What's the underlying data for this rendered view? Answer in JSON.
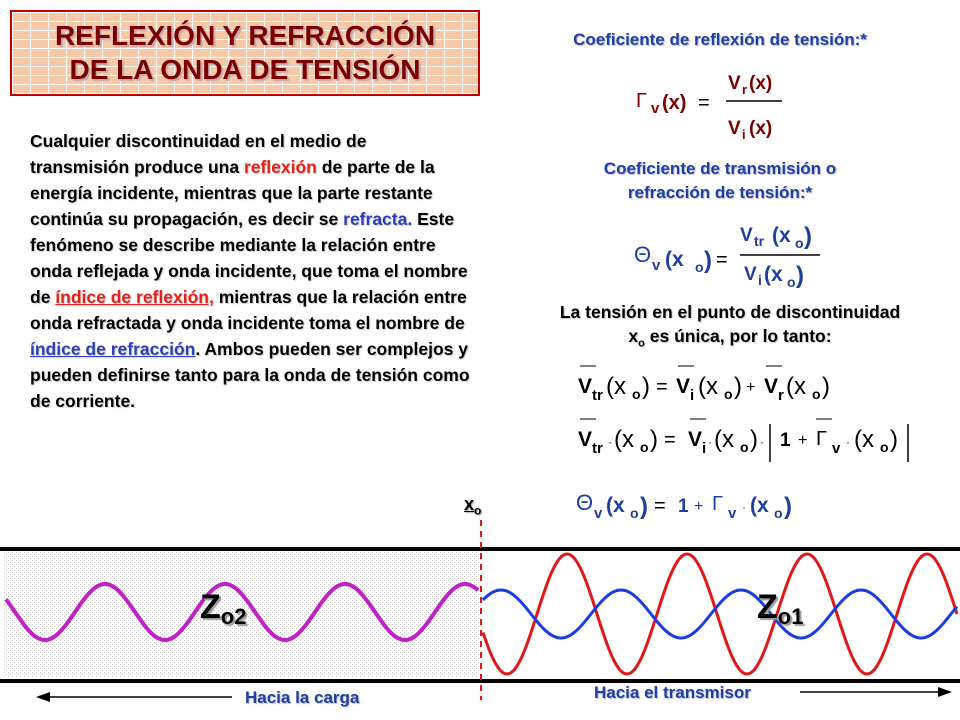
{
  "title": {
    "line1": "REFLEXIÓN Y REFRACCIÓN",
    "line2": "DE LA ONDA DE TENSIÓN"
  },
  "reflection_heading": "Coeficiente de reflexión de tensión:*",
  "transmission_heading": {
    "line1": "Coeficiente de transmisión o",
    "line2": "refracción de tensión:*"
  },
  "paragraph": {
    "p1": "Cualquier discontinuidad en el medio de transmisión produce una ",
    "w1": "reflexión",
    "p2": " de parte de la energía incidente, mientras que la parte restante continúa su propagación, es decir se ",
    "w2": "refracta.",
    "p3": " Este fenómeno se describe mediante la relación entre onda reflejada y onda incidente, que toma el nombre de ",
    "w3": "índice de reflexión,",
    "p4": " mientras que la relación entre onda refractada y onda incidente toma el nombre de ",
    "w4": "índice de refracción",
    "p5": ". Ambos pueden ser complejos y pueden definirse tanto para la onda de tensión como de corriente."
  },
  "discontinuity": {
    "line1": "La tensión en el punto de discontinuidad",
    "line2_pre": "x",
    "line2_sub": "o",
    "line2_post": " es única, por lo tanto:"
  },
  "equations": {
    "gamma_lhs": "Γ",
    "gamma_sub": "v",
    "gamma_arg": "(x)",
    "gamma_num": "V",
    "gamma_num_sub": "r",
    "gamma_num_arg": "(x)",
    "gamma_den": "V",
    "gamma_den_sub": "i",
    "gamma_den_arg": "(x)",
    "theta_lhs": "Θ",
    "theta_sub": "v",
    "theta_arg": "(x",
    "theta_arg_sub": "o",
    "theta_num": "V",
    "theta_num_sub": "tr",
    "theta_den": "V",
    "theta_den_sub": "i",
    "eq3_lhs": "V",
    "eq3_lhs_sub": "tr",
    "eq3_t1": "V",
    "eq3_t1_sub": "i",
    "eq3_t2": "V",
    "eq3_t2_sub": "r",
    "eq4_one": "1",
    "eq5_one": "1",
    "equals": "=",
    "plus": "+",
    "dot": "·"
  },
  "wave": {
    "xo_label": "x",
    "xo_sub": "o",
    "z_left": "Z",
    "z_left_sub": "o2",
    "z_right": "Z",
    "z_right_sub": "o1",
    "left_arrow_label": "Hacia la carga",
    "right_arrow_label": "Hacia el transmisor"
  },
  "colors": {
    "title_text": "#7a0000",
    "heading_blue": "#1f3fa0",
    "highlight_red": "#e8201a",
    "highlight_blue": "#2c3fb6",
    "wave_magenta": "#c020c8",
    "wave_red": "#e01818",
    "wave_blue": "#1a3ce0",
    "divider_red": "#e01818"
  }
}
